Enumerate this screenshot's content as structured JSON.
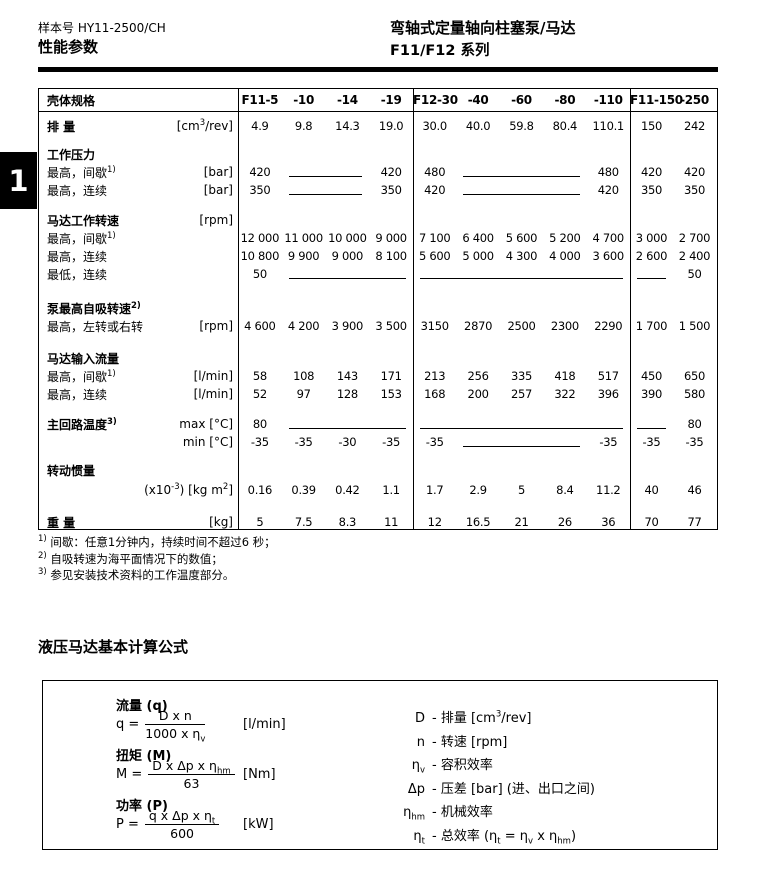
{
  "side_tab": {
    "number": "1"
  },
  "header": {
    "doc_number": "样本号 HY11-2500/CH",
    "page_title": "性能参数",
    "product_title": "弯轴式定量轴向柱塞泵/马达",
    "series_title": "F11/F12 系列"
  },
  "table": {
    "header": {
      "label": "壳体规格",
      "groups": [
        [
          "F11-5",
          "-10",
          "-14",
          "-19"
        ],
        [
          "F12-30",
          "-40",
          "-60",
          "-80",
          "-110"
        ],
        [
          "F11-150",
          "-250"
        ]
      ]
    },
    "rows": [
      {
        "type": "data",
        "primary": true,
        "label": "排 量",
        "unit": "[cm<sup>3</sup>/rev]",
        "groups": [
          [
            "4.9",
            "9.8",
            "14.3",
            "19.0"
          ],
          [
            "30.0",
            "40.0",
            "59.8",
            "80.4",
            "110.1"
          ],
          [
            "150",
            "242"
          ]
        ]
      },
      {
        "type": "section",
        "primary": true,
        "label": "工作压力",
        "unit": "",
        "groups": [
          [],
          [],
          []
        ]
      },
      {
        "type": "data",
        "label": "最高，间歇<sup>1)</sup>",
        "unit": "[bar]",
        "groups": [
          [
            "420",
            "—",
            "420"
          ],
          [
            "480",
            "—",
            "480"
          ],
          [
            "420",
            "420"
          ]
        ]
      },
      {
        "type": "data",
        "label": "最高，连续",
        "unit": "[bar]",
        "groups": [
          [
            "350",
            "—",
            "350"
          ],
          [
            "420",
            "—",
            "420"
          ],
          [
            "350",
            "350"
          ]
        ]
      },
      {
        "type": "section",
        "primary": true,
        "label": "马达工作转速",
        "unit": "[rpm]",
        "groups": [
          [],
          [],
          []
        ]
      },
      {
        "type": "data",
        "label": "最高，间歇<sup>1)</sup>",
        "unit": "",
        "groups": [
          [
            "12 000",
            "11 000",
            "10 000",
            "9 000"
          ],
          [
            "7 100",
            "6 400",
            "5 600",
            "5 200",
            "4 700"
          ],
          [
            "3 000",
            "2 700"
          ]
        ]
      },
      {
        "type": "data",
        "label": "最高，连续",
        "unit": "",
        "groups": [
          [
            "10 800",
            "9 900",
            "9 000",
            "8 100"
          ],
          [
            "5 600",
            "5 000",
            "4 300",
            "4 000",
            "3 600"
          ],
          [
            "2 600",
            "2 400"
          ]
        ]
      },
      {
        "type": "data",
        "label": "最低，连续",
        "unit": "",
        "groups": [
          [
            "50",
            "—"
          ],
          [
            "—"
          ],
          [
            "—",
            "50"
          ]
        ]
      },
      {
        "type": "section",
        "primary": true,
        "label": "泵最高自吸转速<sup>2)</sup>",
        "unit": "",
        "groups": [
          [],
          [],
          []
        ]
      },
      {
        "type": "data",
        "label": "最高，左转或右转",
        "unit": "[rpm]",
        "groups": [
          [
            "4 600",
            "4 200",
            "3 900",
            "3 500"
          ],
          [
            "3150",
            "2870",
            "2500",
            "2300",
            "2290"
          ],
          [
            "1 700",
            "1 500"
          ]
        ]
      },
      {
        "type": "section",
        "primary": true,
        "label": "马达输入流量",
        "unit": "",
        "groups": [
          [],
          [],
          []
        ]
      },
      {
        "type": "data",
        "label": "最高，间歇<sup>1)</sup>",
        "unit": "[l/min]",
        "groups": [
          [
            "58",
            "108",
            "143",
            "171"
          ],
          [
            "213",
            "256",
            "335",
            "418",
            "517"
          ],
          [
            "450",
            "650"
          ]
        ]
      },
      {
        "type": "data",
        "label": "最高，连续",
        "unit": "[l/min]",
        "groups": [
          [
            "52",
            "97",
            "128",
            "153"
          ],
          [
            "168",
            "200",
            "257",
            "322",
            "396"
          ],
          [
            "390",
            "580"
          ]
        ]
      },
      {
        "type": "data",
        "primary": true,
        "label": "主回路温度<sup>3)</sup>",
        "unit": "max [°C]",
        "groups": [
          [
            "80",
            "—"
          ],
          [
            "—"
          ],
          [
            "—",
            "80"
          ]
        ]
      },
      {
        "type": "data",
        "label": "",
        "unit": "min [°C]",
        "groups": [
          [
            "-35",
            "-35",
            "-30",
            "-35"
          ],
          [
            "-35",
            "—",
            "-35"
          ],
          [
            "-35",
            "-35"
          ]
        ]
      },
      {
        "type": "section",
        "primary": true,
        "label": "转动惯量",
        "unit": "",
        "groups": [
          [],
          [],
          []
        ]
      },
      {
        "type": "data",
        "label": "",
        "unit": "(x10<sup>-3</sup>) [kg m<sup>2</sup>]",
        "groups": [
          [
            "0.16",
            "0.39",
            "0.42",
            "1.1"
          ],
          [
            "1.7",
            "2.9",
            "5",
            "8.4",
            "11.2"
          ],
          [
            "40",
            "46"
          ]
        ]
      },
      {
        "type": "data",
        "primary": true,
        "label": "重 量",
        "unit": "[kg]",
        "groups": [
          [
            "5",
            "7.5",
            "8.3",
            "11"
          ],
          [
            "12",
            "16.5",
            "21",
            "26",
            "36"
          ],
          [
            "70",
            "77"
          ]
        ]
      }
    ]
  },
  "footnotes": [
    "<sup>1)</sup> 间歇：任意1分钟内，持续时间不超过6 秒；",
    "<sup>2)</sup> 自吸转速为海平面情况下的数值；",
    "<sup>3)</sup> 参见安装技术资料的工作温度部分。"
  ],
  "formula_section": {
    "title": "液压马达基本计算公式",
    "formulas": [
      {
        "id": "flow",
        "title": "流量 (q)",
        "lhs": "q =",
        "numerator": "D x n",
        "denominator": "1000 x η<sub>v</sub>",
        "unit": "[l/min]"
      },
      {
        "id": "torque",
        "title": "扭矩 (M)",
        "lhs": "M =",
        "numerator": "D x Δp x η<sub>hm</sub>",
        "denominator": "63",
        "unit": "[Nm]"
      },
      {
        "id": "power",
        "title": "功率 (P)",
        "lhs": "P =",
        "numerator": "q x Δp x η<sub>t</sub>",
        "denominator": "600",
        "unit": "[kW]"
      }
    ],
    "legend": [
      {
        "sym": "D",
        "desc": "- 排量 [cm<sup>3</sup>/rev]"
      },
      {
        "sym": "n",
        "desc": "- 转速 [rpm]"
      },
      {
        "sym": "η<sub>v</sub>",
        "desc": "- 容积效率"
      },
      {
        "sym": "Δp",
        "desc": "- 压差 [bar] (进、出口之间)"
      },
      {
        "sym": "η<sub>hm</sub>",
        "desc": "- 机械效率"
      },
      {
        "sym": "η<sub>t</sub>",
        "desc": "- 总效率 (η<sub>t</sub> = η<sub>v</sub> x η<sub>hm</sub>)"
      }
    ]
  }
}
